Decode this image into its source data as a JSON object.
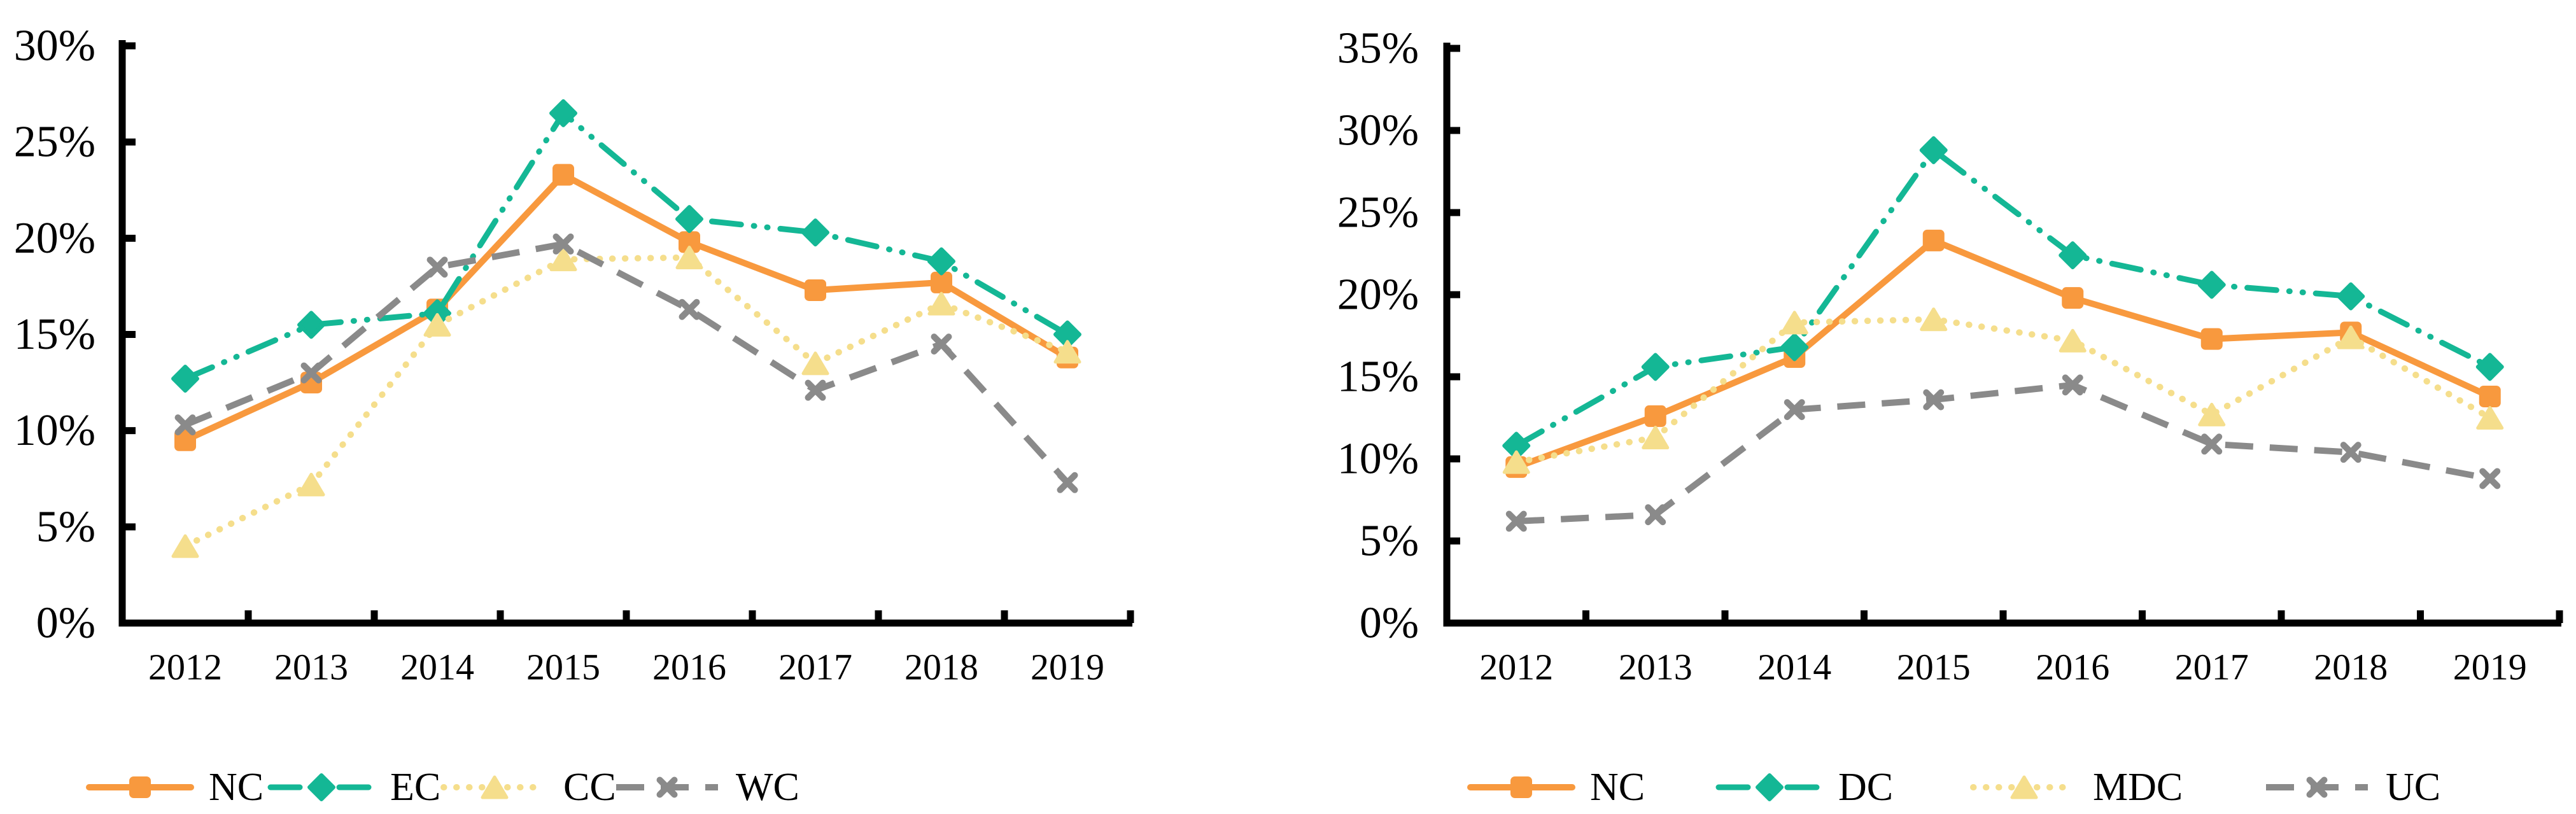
{
  "page": {
    "background": "#ffffff",
    "description": "Two side-by-side line charts of percentage rates 2012-2019"
  },
  "colors": {
    "orange": "#F8993E",
    "teal": "#14B795",
    "yellow": "#F5DE8C",
    "gray": "#8A8A8A",
    "axis": "#000000",
    "text": "#000000"
  },
  "chart_data": [
    {
      "type": "line",
      "title": "",
      "xlabel": "",
      "ylabel": "",
      "grid": false,
      "legend_position": "bottom",
      "categories": [
        "2012",
        "2013",
        "2014",
        "2015",
        "2016",
        "2017",
        "2018",
        "2019"
      ],
      "y_axis": {
        "min": 0,
        "max": 30,
        "step": 5,
        "unit": "%",
        "tick_labels": [
          "0%",
          "5%",
          "10%",
          "15%",
          "20%",
          "25%",
          "30%"
        ]
      },
      "series": [
        {
          "name": "NC",
          "color": "orange",
          "marker": "square",
          "line_style": "solid",
          "values": [
            9.5,
            12.5,
            16.3,
            23.3,
            19.8,
            17.3,
            17.7,
            13.8
          ]
        },
        {
          "name": "EC",
          "color": "teal",
          "marker": "diamond",
          "line_style": "dashdotdot",
          "values": [
            12.7,
            15.5,
            16.1,
            26.5,
            21.0,
            20.3,
            18.8,
            15.0
          ]
        },
        {
          "name": "CC",
          "color": "yellow",
          "marker": "triangle",
          "line_style": "dotted",
          "values": [
            4.0,
            7.2,
            15.5,
            18.9,
            19.0,
            13.5,
            16.6,
            14.1
          ]
        },
        {
          "name": "WC",
          "color": "gray",
          "marker": "x",
          "line_style": "dashed",
          "values": [
            10.3,
            13.0,
            18.5,
            19.7,
            16.3,
            12.1,
            14.5,
            7.3
          ]
        }
      ]
    },
    {
      "type": "line",
      "title": "",
      "xlabel": "",
      "ylabel": "",
      "grid": false,
      "legend_position": "bottom",
      "categories": [
        "2012",
        "2013",
        "2014",
        "2015",
        "2016",
        "2017",
        "2018",
        "2019"
      ],
      "y_axis": {
        "min": 0,
        "max": 35,
        "step": 5,
        "unit": "%",
        "tick_labels": [
          "0%",
          "5%",
          "10%",
          "15%",
          "20%",
          "25%",
          "30%",
          "35%"
        ]
      },
      "series": [
        {
          "name": "NC",
          "color": "orange",
          "marker": "square",
          "line_style": "solid",
          "values": [
            9.5,
            12.6,
            16.2,
            23.3,
            19.8,
            17.3,
            17.7,
            13.8
          ]
        },
        {
          "name": "DC",
          "color": "teal",
          "marker": "diamond",
          "line_style": "dashdotdot",
          "values": [
            10.8,
            15.6,
            16.8,
            28.8,
            22.4,
            20.6,
            19.9,
            15.6
          ]
        },
        {
          "name": "MDC",
          "color": "yellow",
          "marker": "triangle",
          "line_style": "dotted",
          "values": [
            9.8,
            11.3,
            18.3,
            18.5,
            17.2,
            12.7,
            17.4,
            12.5
          ]
        },
        {
          "name": "UC",
          "color": "gray",
          "marker": "x",
          "line_style": "dashed",
          "values": [
            6.2,
            6.6,
            13.0,
            13.6,
            14.5,
            10.9,
            10.4,
            8.8
          ]
        }
      ]
    }
  ]
}
